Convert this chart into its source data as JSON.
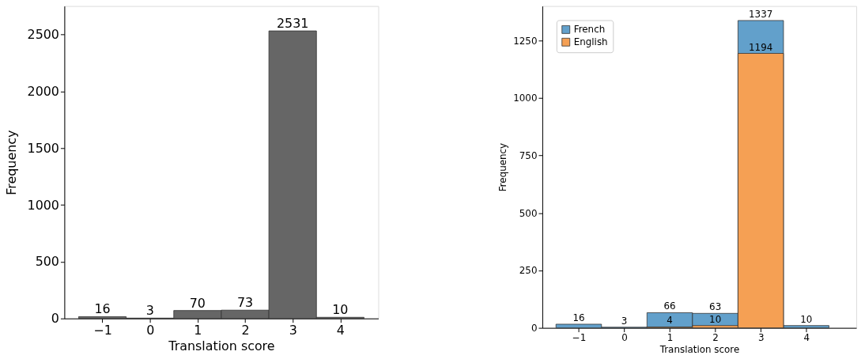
{
  "chart_data": [
    {
      "type": "histogram",
      "xlabel": "Translation score",
      "ylabel": "Frequency",
      "bins": [
        -1.5,
        -0.5,
        0.5,
        1.5,
        2.5,
        3.5,
        4.5
      ],
      "values": [
        16,
        3,
        70,
        73,
        2531,
        10
      ],
      "color": "#666666",
      "xlim": [
        -1.8,
        4.8
      ],
      "ylim": [
        0,
        2750
      ],
      "xticks": [
        {
          "value": -1,
          "label": "−1"
        },
        0,
        1,
        2,
        3,
        4
      ],
      "yticks": [
        0,
        500,
        1000,
        1500,
        2000,
        2500
      ],
      "data_labels": true,
      "grid": false,
      "legend": false
    },
    {
      "type": "histogram",
      "xlabel": "Translation score",
      "ylabel": "Frequency",
      "bins": [
        -1.5,
        -0.5,
        0.5,
        1.5,
        2.5,
        3.5,
        4.5
      ],
      "series": [
        {
          "name": "French",
          "color": "#62a0cb",
          "values": [
            16,
            3,
            66,
            63,
            1337,
            10
          ]
        },
        {
          "name": "English",
          "color": "#f5a054",
          "values": [
            null,
            null,
            4,
            10,
            1194,
            null
          ]
        }
      ],
      "xlim": [
        -1.8,
        5.1
      ],
      "ylim": [
        0,
        1400
      ],
      "xticks": [
        {
          "value": -1,
          "label": "−1"
        },
        0,
        1,
        2,
        3,
        4
      ],
      "yticks": [
        0,
        250,
        500,
        750,
        1000,
        1250
      ],
      "data_labels": true,
      "grid": false,
      "legend": "top left"
    }
  ]
}
